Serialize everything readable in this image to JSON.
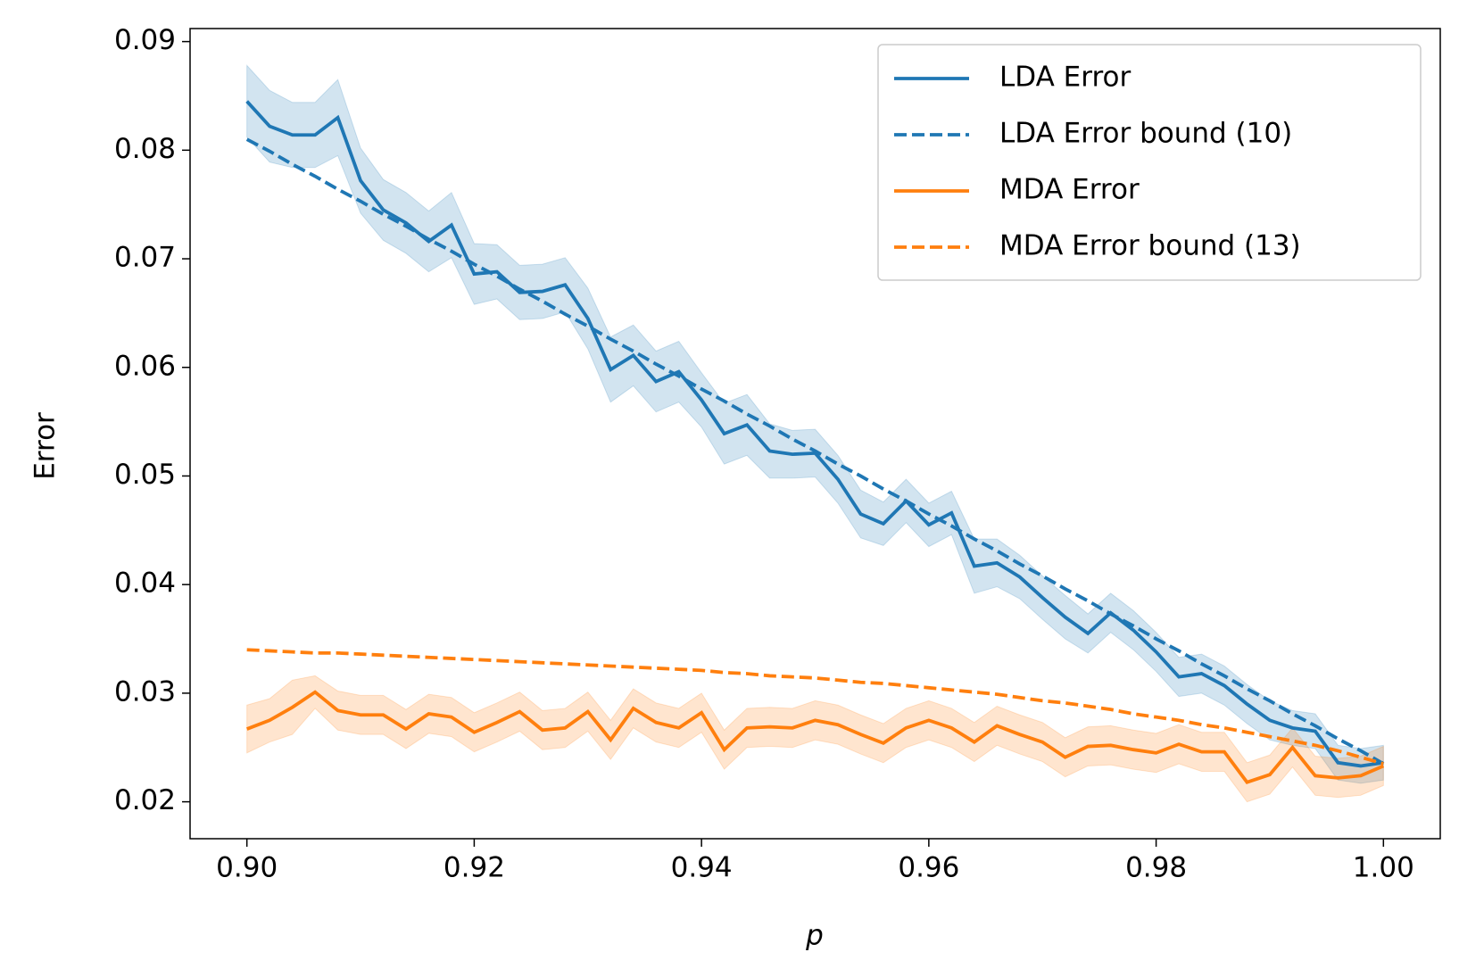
{
  "chart_data": {
    "type": "line",
    "xlabel": "p",
    "ylabel": "Error",
    "x": [
      0.9,
      0.902,
      0.904,
      0.906,
      0.908,
      0.91,
      0.912,
      0.914,
      0.916,
      0.918,
      0.92,
      0.922,
      0.924,
      0.926,
      0.928,
      0.93,
      0.932,
      0.934,
      0.936,
      0.938,
      0.94,
      0.942,
      0.944,
      0.946,
      0.948,
      0.95,
      0.952,
      0.954,
      0.956,
      0.958,
      0.96,
      0.962,
      0.964,
      0.966,
      0.968,
      0.97,
      0.972,
      0.974,
      0.976,
      0.978,
      0.98,
      0.982,
      0.984,
      0.986,
      0.988,
      0.99,
      0.992,
      0.994,
      0.996,
      0.998,
      1.0
    ],
    "series": [
      {
        "name": "LDA Error",
        "color": "#1f77b4",
        "dashed": false,
        "values": [
          0.0845,
          0.0822,
          0.0814,
          0.0814,
          0.083,
          0.0772,
          0.0745,
          0.0733,
          0.0716,
          0.0731,
          0.0686,
          0.0688,
          0.0669,
          0.067,
          0.0676,
          0.0645,
          0.0598,
          0.0611,
          0.0587,
          0.0596,
          0.057,
          0.0539,
          0.0547,
          0.0523,
          0.052,
          0.0521,
          0.0497,
          0.0465,
          0.0456,
          0.0477,
          0.0455,
          0.0466,
          0.0417,
          0.042,
          0.0407,
          0.0388,
          0.037,
          0.0355,
          0.0374,
          0.0358,
          0.0338,
          0.0315,
          0.0318,
          0.0307,
          0.029,
          0.0275,
          0.0268,
          0.0265,
          0.0236,
          0.0233,
          0.0236
        ],
        "error": [
          0.0033,
          0.0033,
          0.003,
          0.003,
          0.0035,
          0.003,
          0.0028,
          0.0028,
          0.0028,
          0.003,
          0.0028,
          0.0025,
          0.0025,
          0.0025,
          0.0025,
          0.0028,
          0.003,
          0.0028,
          0.0028,
          0.0028,
          0.0025,
          0.0028,
          0.0028,
          0.0025,
          0.0022,
          0.0022,
          0.0022,
          0.0022,
          0.002,
          0.002,
          0.002,
          0.002,
          0.0025,
          0.0022,
          0.002,
          0.002,
          0.002,
          0.0018,
          0.0018,
          0.0018,
          0.0018,
          0.0018,
          0.0018,
          0.0018,
          0.0018,
          0.0018,
          0.0016,
          0.0016,
          0.0016,
          0.0016,
          0.0016
        ]
      },
      {
        "name": "LDA Error bound (10)",
        "color": "#1f77b4",
        "dashed": true,
        "values": [
          0.081,
          0.0799,
          0.0787,
          0.0776,
          0.0764,
          0.0753,
          0.0741,
          0.073,
          0.0718,
          0.0707,
          0.0695,
          0.0684,
          0.0672,
          0.0661,
          0.0649,
          0.0638,
          0.0626,
          0.0615,
          0.0603,
          0.0592,
          0.058,
          0.0569,
          0.0557,
          0.0546,
          0.0534,
          0.0523,
          0.0511,
          0.05,
          0.0488,
          0.0477,
          0.0465,
          0.0454,
          0.0442,
          0.0431,
          0.0419,
          0.0408,
          0.0396,
          0.0385,
          0.0373,
          0.0362,
          0.035,
          0.0339,
          0.0327,
          0.0316,
          0.0304,
          0.0293,
          0.0281,
          0.027,
          0.0258,
          0.0247,
          0.0235
        ]
      },
      {
        "name": "MDA Error",
        "color": "#ff7f0e",
        "dashed": false,
        "values": [
          0.0267,
          0.0275,
          0.0287,
          0.0301,
          0.0284,
          0.028,
          0.028,
          0.0267,
          0.0281,
          0.0278,
          0.0264,
          0.0273,
          0.0283,
          0.0266,
          0.0268,
          0.0283,
          0.0257,
          0.0286,
          0.0273,
          0.0268,
          0.0282,
          0.0248,
          0.0268,
          0.0269,
          0.0268,
          0.0275,
          0.0271,
          0.0262,
          0.0254,
          0.0268,
          0.0275,
          0.0268,
          0.0255,
          0.027,
          0.0262,
          0.0255,
          0.0241,
          0.0251,
          0.0252,
          0.0248,
          0.0245,
          0.0253,
          0.0246,
          0.0246,
          0.0218,
          0.0225,
          0.025,
          0.0224,
          0.0222,
          0.0224,
          0.0233
        ],
        "error": [
          0.0022,
          0.002,
          0.0025,
          0.0015,
          0.0018,
          0.0018,
          0.0018,
          0.0018,
          0.0018,
          0.0018,
          0.0018,
          0.0018,
          0.0018,
          0.0018,
          0.0018,
          0.0018,
          0.0018,
          0.0018,
          0.0018,
          0.0018,
          0.0018,
          0.0018,
          0.0018,
          0.0018,
          0.0018,
          0.0018,
          0.0018,
          0.0018,
          0.0018,
          0.0018,
          0.0018,
          0.0018,
          0.0018,
          0.0018,
          0.0018,
          0.0018,
          0.0018,
          0.0018,
          0.0018,
          0.0018,
          0.0018,
          0.0018,
          0.0018,
          0.0018,
          0.0018,
          0.0018,
          0.0018,
          0.0018,
          0.0018,
          0.0018,
          0.0018
        ]
      },
      {
        "name": "MDA Error bound (13)",
        "color": "#ff7f0e",
        "dashed": true,
        "values": [
          0.034,
          0.0339,
          0.0338,
          0.0337,
          0.0337,
          0.0336,
          0.0335,
          0.0334,
          0.0333,
          0.0332,
          0.0331,
          0.033,
          0.0329,
          0.0328,
          0.0327,
          0.0326,
          0.0325,
          0.0324,
          0.0323,
          0.0322,
          0.0321,
          0.0319,
          0.0318,
          0.0316,
          0.0315,
          0.0314,
          0.0312,
          0.031,
          0.0309,
          0.0307,
          0.0305,
          0.0303,
          0.0301,
          0.0299,
          0.0296,
          0.0293,
          0.0291,
          0.0288,
          0.0285,
          0.0281,
          0.0278,
          0.0275,
          0.0271,
          0.0268,
          0.0264,
          0.026,
          0.0256,
          0.0252,
          0.0247,
          0.0241,
          0.0235
        ]
      }
    ],
    "xlim": [
      0.895,
      1.005
    ],
    "ylim": [
      0.0166,
      0.0912
    ],
    "xticks": [
      {
        "value": 0.9,
        "label": "0.90"
      },
      0.92,
      0.94,
      0.96,
      0.98,
      {
        "value": 1.0,
        "label": "1.00"
      }
    ],
    "yticks": [
      0.02,
      0.03,
      0.04,
      0.05,
      0.06,
      0.07,
      0.08,
      0.09
    ],
    "legend": "upper right",
    "grid": false
  }
}
